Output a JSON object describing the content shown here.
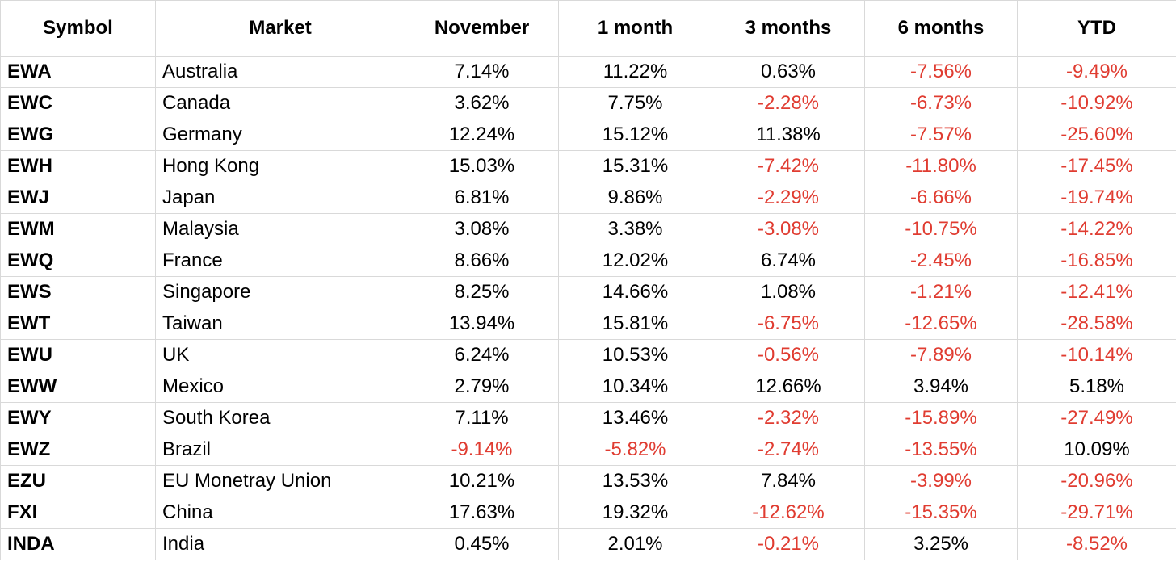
{
  "columns": [
    "Symbol",
    "Market",
    "November",
    "1 month",
    "3 months",
    "6 months",
    "YTD"
  ],
  "rows": [
    {
      "symbol": "EWA",
      "market": "Australia",
      "november": "7.14%",
      "m1": "11.22%",
      "m3": "0.63%",
      "m6": "-7.56%",
      "ytd": "-9.49%"
    },
    {
      "symbol": "EWC",
      "market": "Canada",
      "november": "3.62%",
      "m1": "7.75%",
      "m3": "-2.28%",
      "m6": "-6.73%",
      "ytd": "-10.92%"
    },
    {
      "symbol": "EWG",
      "market": "Germany",
      "november": "12.24%",
      "m1": "15.12%",
      "m3": "11.38%",
      "m6": "-7.57%",
      "ytd": "-25.60%"
    },
    {
      "symbol": "EWH",
      "market": "Hong Kong",
      "november": "15.03%",
      "m1": "15.31%",
      "m3": "-7.42%",
      "m6": "-11.80%",
      "ytd": "-17.45%"
    },
    {
      "symbol": "EWJ",
      "market": "Japan",
      "november": "6.81%",
      "m1": "9.86%",
      "m3": "-2.29%",
      "m6": "-6.66%",
      "ytd": "-19.74%"
    },
    {
      "symbol": "EWM",
      "market": "Malaysia",
      "november": "3.08%",
      "m1": "3.38%",
      "m3": "-3.08%",
      "m6": "-10.75%",
      "ytd": "-14.22%"
    },
    {
      "symbol": "EWQ",
      "market": "France",
      "november": "8.66%",
      "m1": "12.02%",
      "m3": "6.74%",
      "m6": "-2.45%",
      "ytd": "-16.85%"
    },
    {
      "symbol": "EWS",
      "market": "Singapore",
      "november": "8.25%",
      "m1": "14.66%",
      "m3": "1.08%",
      "m6": "-1.21%",
      "ytd": "-12.41%"
    },
    {
      "symbol": "EWT",
      "market": "Taiwan",
      "november": "13.94%",
      "m1": "15.81%",
      "m3": "-6.75%",
      "m6": "-12.65%",
      "ytd": "-28.58%"
    },
    {
      "symbol": "EWU",
      "market": "UK",
      "november": "6.24%",
      "m1": "10.53%",
      "m3": "-0.56%",
      "m6": "-7.89%",
      "ytd": "-10.14%"
    },
    {
      "symbol": "EWW",
      "market": "Mexico",
      "november": "2.79%",
      "m1": "10.34%",
      "m3": "12.66%",
      "m6": "3.94%",
      "ytd": "5.18%"
    },
    {
      "symbol": "EWY",
      "market": "South Korea",
      "november": "7.11%",
      "m1": "13.46%",
      "m3": "-2.32%",
      "m6": "-15.89%",
      "ytd": "-27.49%"
    },
    {
      "symbol": "EWZ",
      "market": "Brazil",
      "november": "-9.14%",
      "m1": "-5.82%",
      "m3": "-2.74%",
      "m6": "-13.55%",
      "ytd": "10.09%"
    },
    {
      "symbol": "EZU",
      "market": "EU Monetray Union",
      "november": "10.21%",
      "m1": "13.53%",
      "m3": "7.84%",
      "m6": "-3.99%",
      "ytd": "-20.96%"
    },
    {
      "symbol": "FXI",
      "market": "China",
      "november": "17.63%",
      "m1": "19.32%",
      "m3": "-12.62%",
      "m6": "-15.35%",
      "ytd": "-29.71%"
    },
    {
      "symbol": "INDA",
      "market": "India",
      "november": "0.45%",
      "m1": "2.01%",
      "m3": "-0.21%",
      "m6": "3.25%",
      "ytd": "-8.52%"
    }
  ],
  "colors": {
    "negative": "#e03c31",
    "positive": "#000000",
    "gridline": "#d9d9d9"
  }
}
